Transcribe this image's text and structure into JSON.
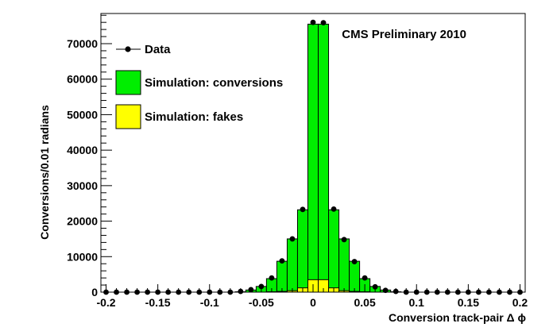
{
  "chart_data": {
    "type": "bar",
    "annotation": "CMS Preliminary 2010",
    "xlabel": "Conversion track-pair Δ ϕ",
    "ylabel": "Conversions/0.01 radians",
    "xlim": [
      -0.205,
      0.205
    ],
    "ylim": [
      0,
      78500
    ],
    "xticks": [
      -0.2,
      -0.15,
      -0.1,
      -0.05,
      0,
      0.05,
      0.1,
      0.15,
      0.2
    ],
    "xtick_labels": [
      "-0.2",
      "-0.15",
      "-0.1",
      "-0.05",
      "0",
      "0.05",
      "0.1",
      "0.15",
      "0.2"
    ],
    "yticks": [
      0,
      10000,
      20000,
      30000,
      40000,
      50000,
      60000,
      70000
    ],
    "ytick_labels": [
      "0",
      "10000",
      "20000",
      "30000",
      "40000",
      "50000",
      "60000",
      "70000"
    ],
    "bin_width": 0.01,
    "bin_centers": [
      -0.2,
      -0.19,
      -0.18,
      -0.17,
      -0.16,
      -0.15,
      -0.14,
      -0.13,
      -0.12,
      -0.11,
      -0.1,
      -0.09,
      -0.08,
      -0.07,
      -0.06,
      -0.05,
      -0.04,
      -0.03,
      -0.02,
      -0.01,
      0,
      0.01,
      0.02,
      0.03,
      0.04,
      0.05,
      0.06,
      0.07,
      0.08,
      0.09,
      0.1,
      0.11,
      0.12,
      0.13,
      0.14,
      0.15,
      0.16,
      0.17,
      0.18,
      0.19,
      0.2
    ],
    "grid": false,
    "legend_position": "top-left",
    "series": [
      {
        "name": "Simulation: conversions",
        "kind": "histogram",
        "color": "#00ee00",
        "values": [
          0,
          0,
          0,
          0,
          0,
          0,
          0,
          0,
          0,
          0,
          0,
          0,
          0,
          100,
          600,
          1600,
          3800,
          8700,
          15000,
          23200,
          75500,
          75500,
          23200,
          15000,
          8700,
          3800,
          1600,
          600,
          100,
          0,
          0,
          0,
          0,
          0,
          0,
          0,
          0,
          0,
          0,
          0,
          0
        ]
      },
      {
        "name": "Simulation: fakes",
        "kind": "histogram",
        "color": "#ffff00",
        "values": [
          0,
          0,
          0,
          0,
          0,
          0,
          0,
          0,
          0,
          0,
          0,
          0,
          0,
          0,
          0,
          0,
          100,
          200,
          400,
          1200,
          3500,
          3500,
          1200,
          400,
          200,
          100,
          0,
          0,
          0,
          0,
          0,
          0,
          0,
          0,
          0,
          0,
          0,
          0,
          0,
          0,
          0
        ]
      },
      {
        "name": "Data",
        "kind": "points",
        "color": "#000000",
        "values": [
          0,
          0,
          0,
          0,
          0,
          0,
          0,
          0,
          0,
          0,
          0,
          0,
          0,
          200,
          700,
          1600,
          4000,
          8800,
          15000,
          23300,
          76000,
          75900,
          23400,
          14800,
          8600,
          4000,
          1500,
          500,
          200,
          0,
          0,
          0,
          0,
          0,
          0,
          0,
          0,
          0,
          0,
          0,
          0
        ]
      }
    ],
    "legend": [
      {
        "label": "Data",
        "style": "marker"
      },
      {
        "label": "Simulation: conversions",
        "style": "box",
        "color": "#00ee00"
      },
      {
        "label": "Simulation: fakes",
        "style": "box",
        "color": "#ffff00"
      }
    ]
  }
}
